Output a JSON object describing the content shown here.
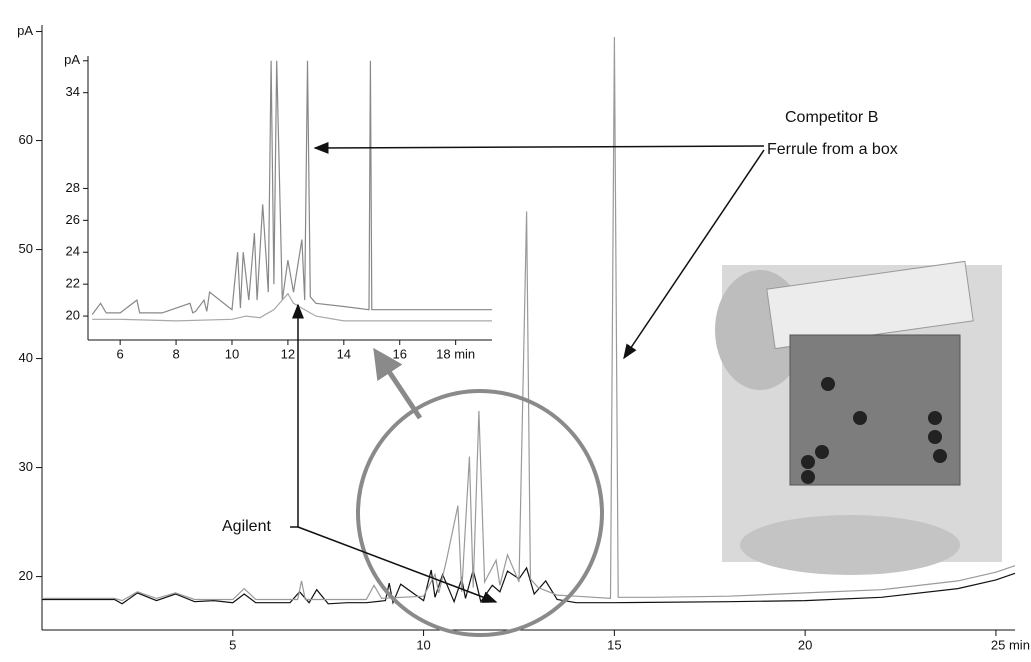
{
  "chart_data": [
    {
      "type": "line",
      "xlim": [
        0,
        25.5
      ],
      "ylim": [
        15.1,
        70.6
      ],
      "xticks": [
        5,
        10,
        15,
        20,
        {
          "value": 25,
          "label": "25 min"
        }
      ],
      "yticks": [
        20,
        30,
        40,
        50,
        60,
        {
          "value": 70,
          "label": "pA"
        }
      ],
      "series": [
        {
          "name": "Agilent",
          "color": "#111111",
          "x": [
            0,
            1.9,
            2.1,
            2.5,
            3,
            3.5,
            4,
            4.5,
            5,
            5.3,
            5.6,
            6.5,
            6.75,
            7,
            7.2,
            7.5,
            8,
            8.5,
            9,
            9.1,
            9.2,
            9.4,
            10,
            10.2,
            10.3,
            10.5,
            10.8,
            11,
            11.1,
            11.3,
            11.5,
            11.8,
            12,
            12.2,
            12.5,
            12.7,
            12.9,
            13.2,
            13.5,
            14,
            15,
            18,
            20,
            22,
            24,
            25,
            25.5
          ],
          "values": [
            17.9,
            17.9,
            17.5,
            18.5,
            17.8,
            18.4,
            17.7,
            17.8,
            17.6,
            18.4,
            17.6,
            17.6,
            18.6,
            17.6,
            18.8,
            17.5,
            17.6,
            17.6,
            17.8,
            19.4,
            17.6,
            19.3,
            17.8,
            20.6,
            18.1,
            20.2,
            17.7,
            19.8,
            18,
            20.6,
            17.7,
            19.2,
            18.6,
            20.5,
            19.8,
            20.8,
            18.4,
            19.6,
            17.9,
            17.6,
            17.6,
            17.7,
            17.8,
            18.1,
            18.9,
            19.7,
            20.3
          ]
        },
        {
          "name": [
            "Competitor B",
            "Ferrule from a box"
          ],
          "color": "#9a9a9a",
          "x": [
            0,
            1.9,
            2.1,
            2.5,
            3,
            3.5,
            4,
            5,
            5.3,
            5.6,
            6.7,
            6.8,
            6.9,
            7.5,
            8.5,
            8.7,
            8.9,
            10,
            10.3,
            10.4,
            10.6,
            10.9,
            11,
            11.2,
            11.3,
            11.45,
            11.6,
            11.9,
            12,
            12.2,
            12.5,
            12.7,
            12.8,
            13,
            13.5,
            14,
            14.9,
            15,
            15.1,
            16,
            18,
            20,
            22,
            24,
            25,
            25.5
          ],
          "values": [
            18,
            18,
            17.8,
            18.6,
            18,
            18.5,
            17.9,
            17.9,
            18.9,
            17.9,
            17.9,
            19.6,
            17.9,
            17.9,
            17.9,
            19.2,
            18,
            18.2,
            20.2,
            18.5,
            21.5,
            26.5,
            18.6,
            31,
            19,
            35.2,
            19.5,
            21.5,
            19.2,
            22,
            19.5,
            53.5,
            19.8,
            19,
            18.3,
            18.2,
            18,
            69.5,
            18.1,
            18.1,
            18.2,
            18.5,
            18.8,
            19.6,
            20.4,
            21
          ]
        }
      ]
    },
    {
      "type": "line",
      "xlim": [
        4.85,
        19.3
      ],
      "ylim": [
        18.5,
        36.3
      ],
      "xticks": [
        6,
        8,
        10,
        12,
        14,
        16,
        {
          "value": 18,
          "label": "18  min"
        }
      ],
      "yticks": [
        20,
        22,
        24,
        26,
        28,
        34,
        {
          "value": 36,
          "label": "pA"
        }
      ],
      "series": [
        {
          "color": "#888888",
          "x": [
            5,
            5.3,
            5.5,
            6,
            6.6,
            6.7,
            6.8,
            7.5,
            8.5,
            8.6,
            8.7,
            9,
            9.1,
            9.2,
            10,
            10.2,
            10.3,
            10.4,
            10.6,
            10.8,
            10.9,
            11.1,
            11.3,
            11.4,
            11.5,
            11.6,
            11.8,
            12,
            12.2,
            12.5,
            12.6,
            12.7,
            12.8,
            13,
            14,
            14.9,
            14.95,
            15,
            16,
            18,
            19.3
          ],
          "values": [
            20.1,
            20.8,
            20.2,
            20.2,
            21,
            20.2,
            20.2,
            20.2,
            20.8,
            20.2,
            20.3,
            21,
            20.3,
            21.5,
            20.4,
            24,
            20.5,
            24,
            21,
            25.2,
            21,
            27,
            21.5,
            36,
            22,
            36,
            21,
            23.5,
            21.5,
            24.8,
            21,
            36,
            21.2,
            20.8,
            20.6,
            20.4,
            36,
            20.4,
            20.4,
            20.4,
            20.4
          ]
        },
        {
          "color": "#a8a8a8",
          "x": [
            5,
            6,
            8,
            10,
            10.5,
            11,
            11.5,
            12,
            12.2,
            12.5,
            13,
            14,
            16,
            19.3
          ],
          "values": [
            19.8,
            19.8,
            19.7,
            19.8,
            20,
            19.9,
            20.4,
            21.4,
            20.8,
            20.5,
            20,
            19.7,
            19.7,
            19.7
          ]
        }
      ]
    }
  ]
}
